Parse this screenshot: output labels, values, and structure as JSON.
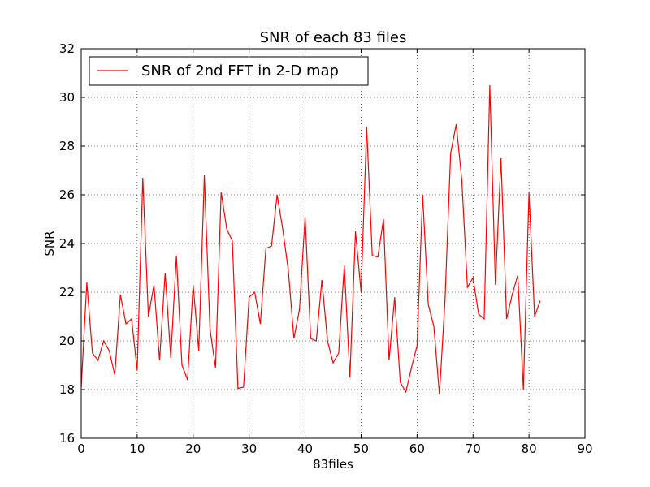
{
  "chart_data": {
    "type": "line",
    "title": "SNR of each 83 files",
    "xlabel": "83files",
    "ylabel": "SNR",
    "xlim": [
      0,
      90
    ],
    "ylim": [
      16,
      32
    ],
    "xticks": [
      0,
      10,
      20,
      30,
      40,
      50,
      60,
      70,
      80,
      90
    ],
    "yticks": [
      16,
      18,
      20,
      22,
      24,
      26,
      28,
      30,
      32
    ],
    "grid": true,
    "grid_style": "dotted",
    "legend_position": "top-left",
    "series": [
      {
        "name": "SNR of 2nd FFT in 2-D map",
        "color": "#ff0000",
        "x": [
          0,
          1,
          2,
          3,
          4,
          5,
          6,
          7,
          8,
          9,
          10,
          11,
          12,
          13,
          14,
          15,
          16,
          17,
          18,
          19,
          20,
          21,
          22,
          23,
          24,
          25,
          26,
          27,
          28,
          29,
          30,
          31,
          32,
          33,
          34,
          35,
          36,
          37,
          38,
          39,
          40,
          41,
          42,
          43,
          44,
          45,
          46,
          47,
          48,
          49,
          50,
          51,
          52,
          53,
          54,
          55,
          56,
          57,
          58,
          59,
          60,
          61,
          62,
          63,
          64,
          65,
          66,
          67,
          68,
          69,
          70,
          71,
          72,
          73,
          74,
          75,
          76,
          77,
          78,
          79,
          80,
          81,
          82
        ],
        "values": [
          18.1,
          22.4,
          19.5,
          19.2,
          20.0,
          19.6,
          18.6,
          21.9,
          20.7,
          20.9,
          18.8,
          26.7,
          21.0,
          22.3,
          19.2,
          22.8,
          19.3,
          23.5,
          19.0,
          18.4,
          22.3,
          19.6,
          26.8,
          20.5,
          18.9,
          26.1,
          24.6,
          24.1,
          18.05,
          18.1,
          21.8,
          22.0,
          20.7,
          23.8,
          23.9,
          26.0,
          24.6,
          22.9,
          20.1,
          21.3,
          25.1,
          20.1,
          20.0,
          22.5,
          20.0,
          19.1,
          19.5,
          23.1,
          18.5,
          24.5,
          22.0,
          28.8,
          23.5,
          23.45,
          25.0,
          19.2,
          21.8,
          18.3,
          17.9,
          18.9,
          19.8,
          26.0,
          21.5,
          20.6,
          17.8,
          21.7,
          27.7,
          28.9,
          26.6,
          22.2,
          22.6,
          21.1,
          20.9,
          30.5,
          22.3,
          27.5,
          20.9,
          21.9,
          22.7,
          18.0,
          26.1,
          21.0,
          21.65
        ]
      }
    ]
  }
}
